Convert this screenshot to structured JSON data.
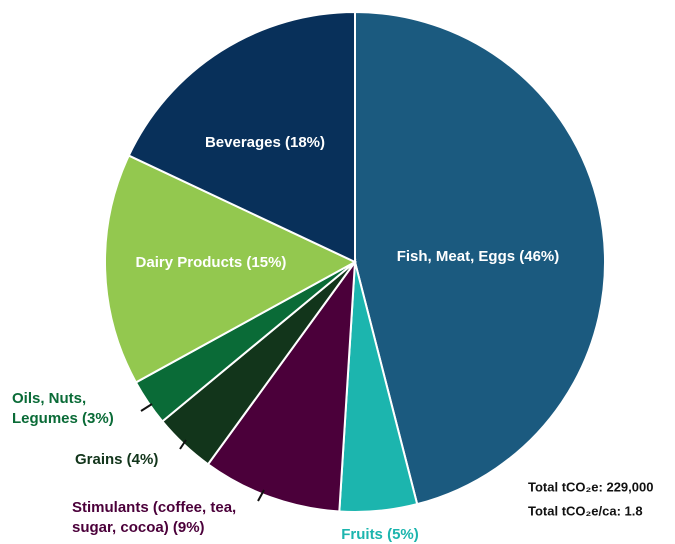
{
  "chart_data": {
    "type": "pie",
    "categories": [
      "Fish, Meat, Eggs (46%)",
      "Fruits (5%)",
      "Stimulants (coffee, tea,\nsugar, cocoa) (9%)",
      "Grains (4%)",
      "Oils, Nuts,\nLegumes (3%)",
      "Dairy Products (15%)",
      "Beverages (18%)"
    ],
    "values": [
      46,
      5,
      9,
      4,
      3,
      15,
      18
    ],
    "colors": [
      "#1b5a7f",
      "#1cb5ae",
      "#4b003a",
      "#12351b",
      "#0a6b37",
      "#93c84f",
      "#08305a"
    ],
    "label_colors": [
      "#ffffff",
      "#1cb5ae",
      "#4b003a",
      "#12351b",
      "#0a6b37",
      "#ffffff",
      "#ffffff"
    ],
    "annotations": [
      "Total tCO₂e: 229,000",
      "Total tCO₂e/ca: 1.8"
    ]
  }
}
